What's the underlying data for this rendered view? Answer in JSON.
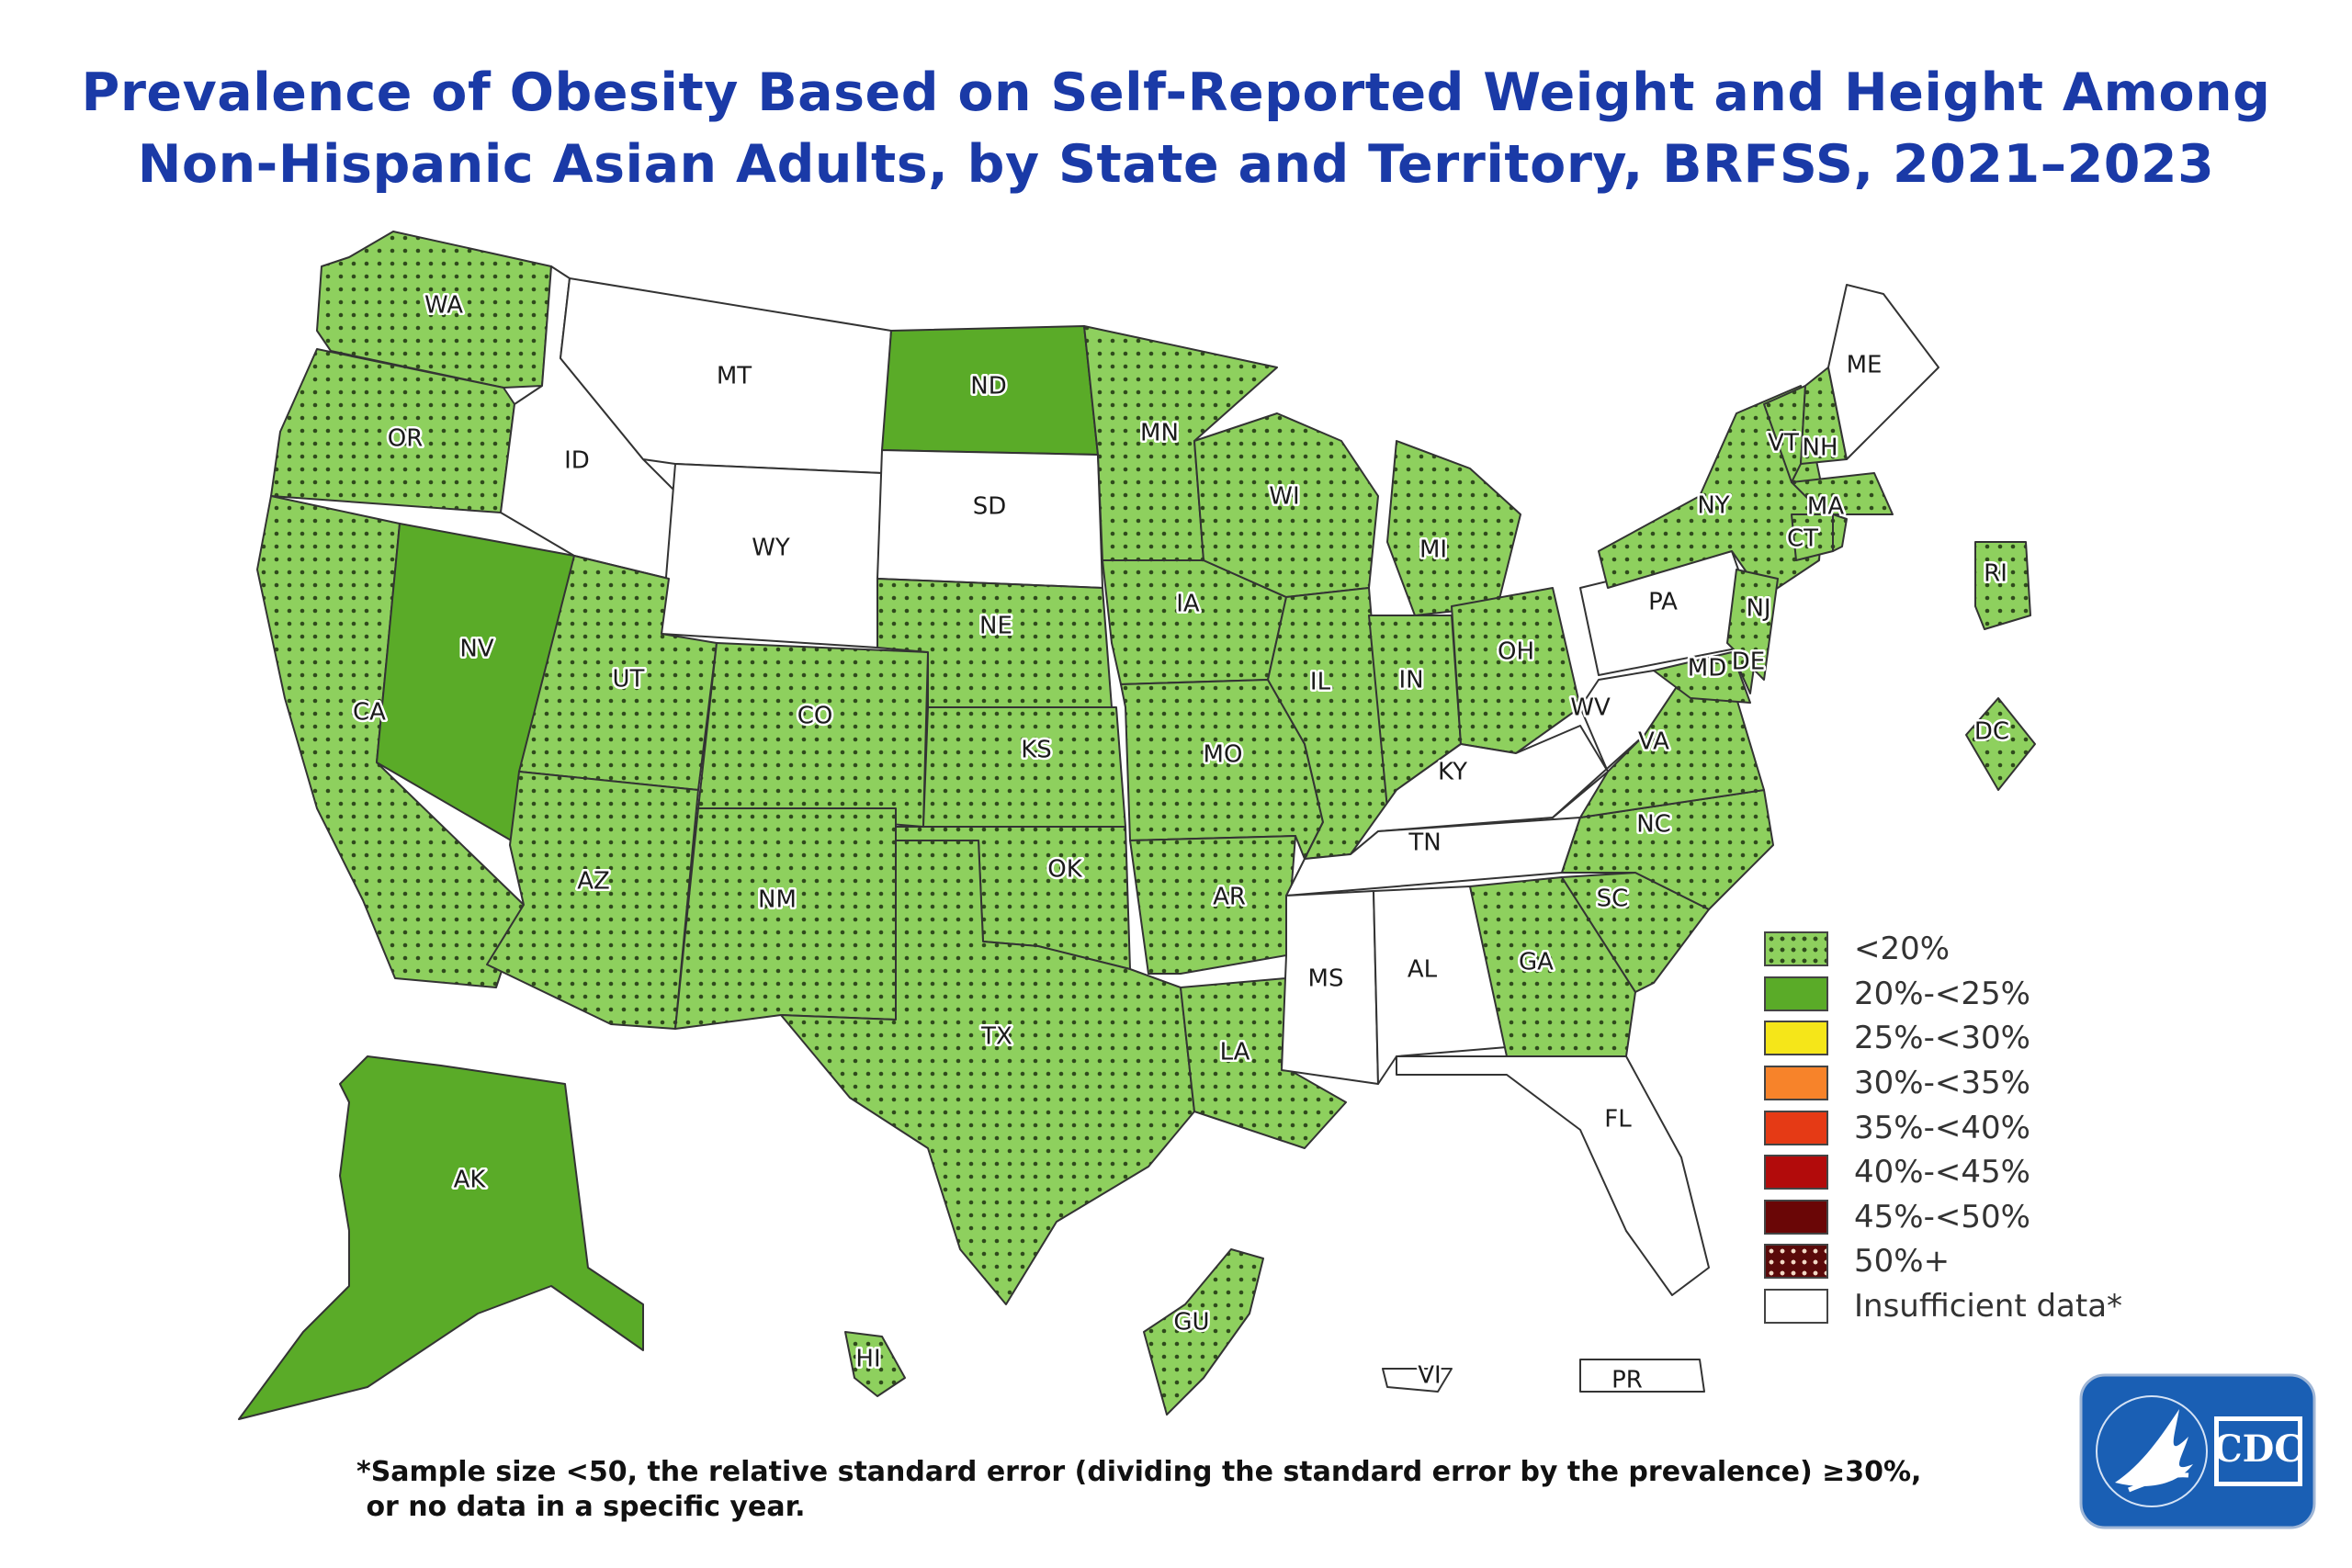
{
  "title": {
    "line1": "Prevalence of Obesity Based on Self-Reported Weight and Height Among",
    "line2": "Non-Hispanic Asian Adults, by State and Territory, BRFSS, 2021–2023"
  },
  "categories": {
    "lt20": {
      "label": "<20%",
      "color": "#8ed05e",
      "pattern": "dots"
    },
    "c20_25": {
      "label": "20%-<25%",
      "color": "#5aab28"
    },
    "c25_30": {
      "label": "25%-<30%",
      "color": "#f5e619"
    },
    "c30_35": {
      "label": "30%-<35%",
      "color": "#f7832a"
    },
    "c35_40": {
      "label": "35%-<40%",
      "color": "#e53a15"
    },
    "c40_45": {
      "label": "40%-<45%",
      "color": "#b20b0b"
    },
    "c45_50": {
      "label": "45%-<50%",
      "color": "#6a0606"
    },
    "c50plus": {
      "label": "50%+",
      "color": "#5a0a0a",
      "pattern": "light-dots"
    },
    "insufficient": {
      "label": "Insufficient data*",
      "color": "#ffffff"
    }
  },
  "legend_order": [
    "lt20",
    "c20_25",
    "c25_30",
    "c30_35",
    "c35_40",
    "c40_45",
    "c45_50",
    "c50plus",
    "insufficient"
  ],
  "states": {
    "WA": "lt20",
    "OR": "lt20",
    "CA": "lt20",
    "NV": "c20_25",
    "ID": "insufficient",
    "MT": "insufficient",
    "WY": "insufficient",
    "UT": "lt20",
    "AZ": "lt20",
    "CO": "lt20",
    "NM": "lt20",
    "ND": "c20_25",
    "SD": "insufficient",
    "NE": "lt20",
    "KS": "lt20",
    "OK": "lt20",
    "TX": "lt20",
    "MN": "lt20",
    "IA": "lt20",
    "MO": "lt20",
    "AR": "lt20",
    "LA": "lt20",
    "WI": "lt20",
    "IL": "lt20",
    "MI": "lt20",
    "IN": "lt20",
    "OH": "lt20",
    "KY": "insufficient",
    "TN": "insufficient",
    "MS": "insufficient",
    "AL": "insufficient",
    "GA": "lt20",
    "FL": "insufficient",
    "SC": "lt20",
    "NC": "lt20",
    "VA": "lt20",
    "WV": "insufficient",
    "PA": "insufficient",
    "NY": "lt20",
    "VT": "lt20",
    "NH": "lt20",
    "ME": "insufficient",
    "MA": "lt20",
    "RI": "lt20",
    "CT": "lt20",
    "NJ": "lt20",
    "DE": "lt20",
    "MD": "lt20",
    "DC": "lt20",
    "AK": "c20_25",
    "HI": "lt20",
    "GU": "lt20",
    "PR": "insufficient",
    "VI": "insufficient"
  },
  "footnote": {
    "line1": "*Sample size <50, the relative standard error (dividing the standard error by the prevalence) ≥30%,",
    "line2": " or no data in a specific year."
  },
  "logo": {
    "text": "CDC",
    "color": "#1a5fb4"
  }
}
